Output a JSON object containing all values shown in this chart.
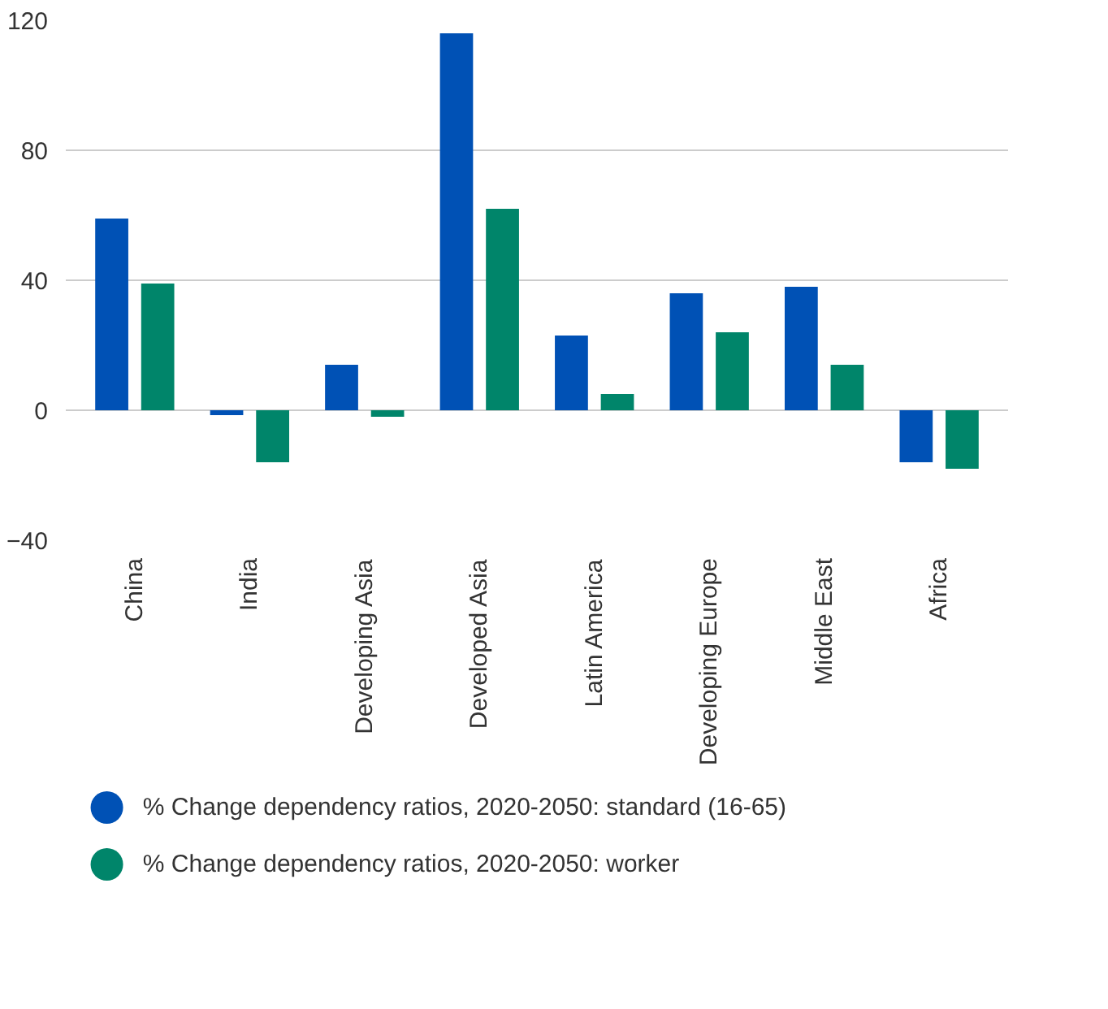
{
  "chart_data": {
    "type": "bar",
    "categories": [
      "China",
      "India",
      "Developing Asia",
      "Developed Asia",
      "Latin America",
      "Developing Europe",
      "Middle East",
      "Africa"
    ],
    "series": [
      {
        "name": "% Change dependency ratios, 2020-2050: standard (16-65)",
        "color": "#0051b5",
        "values": [
          59,
          -1.5,
          14,
          116,
          23,
          36,
          38,
          -16
        ]
      },
      {
        "name": "% Change dependency ratios, 2020-2050: worker",
        "color": "#00856a",
        "values": [
          39,
          -16,
          -2,
          62,
          5,
          24,
          14,
          -18
        ]
      }
    ],
    "ylim": [
      -40,
      120
    ],
    "yticks": [
      -40,
      0,
      40,
      80,
      120
    ],
    "grid": "y",
    "legend": "bottom"
  }
}
